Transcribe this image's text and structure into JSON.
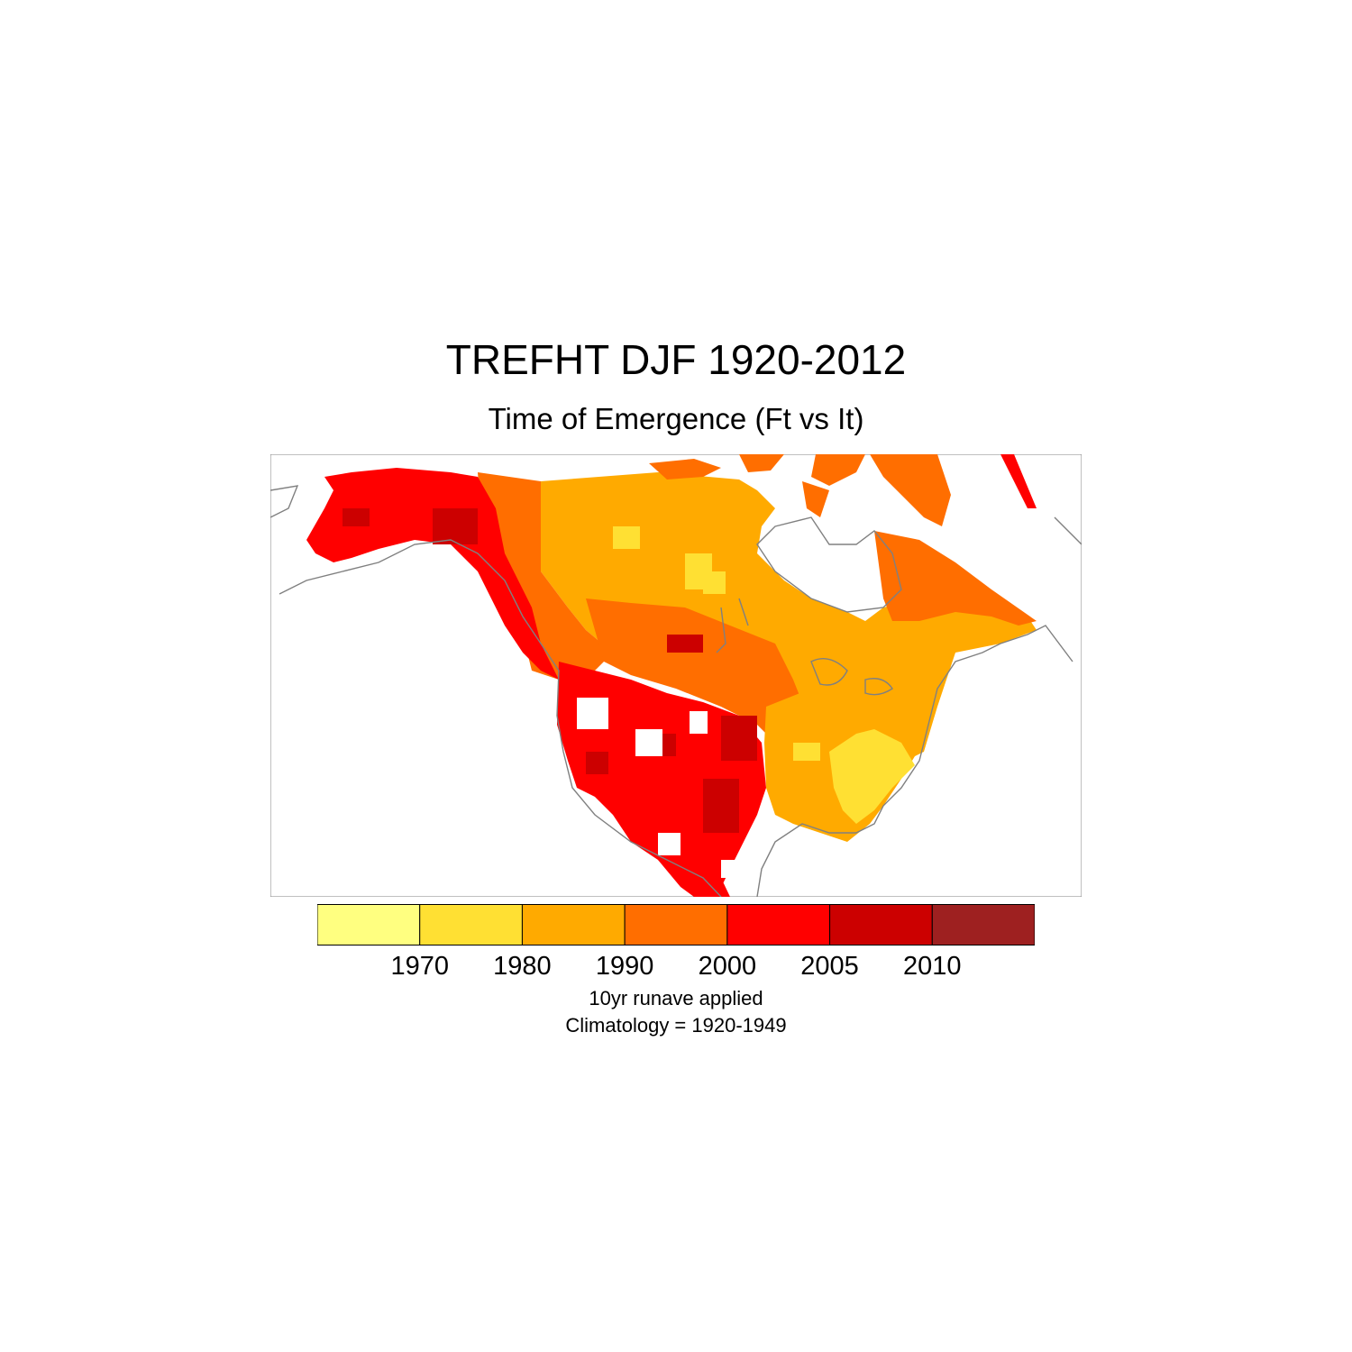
{
  "title": "TREFHT DJF 1920-2012",
  "subtitle": "Time of Emergence (Ft vs It)",
  "colorbar": {
    "colors": [
      "#ffff80",
      "#ffe033",
      "#ffaa00",
      "#ff6e00",
      "#ff0000",
      "#cc0000",
      "#9e2020"
    ],
    "labels": [
      "1970",
      "1980",
      "1990",
      "2000",
      "2005",
      "2010"
    ]
  },
  "notes": {
    "line1": "10yr runave applied",
    "line2": "Climatology = 1920-1949"
  },
  "map": {
    "region": "North America",
    "fill_colors": {
      "alaska": "#ff0000",
      "yukon_bc": "#ff0000",
      "northwest": "#ff6e00",
      "prairies": "#ff6e00",
      "central_canada": "#ffaa00",
      "arctic_islands": "#ff6e00",
      "labrador": "#ff6e00",
      "eastern_us": "#ffaa00",
      "southeast_us": "#ffe033",
      "southwest_us": "#ff0000",
      "hotspots": "#cc0000",
      "light_patches": "#ffe033",
      "coastline": "#808080"
    }
  }
}
